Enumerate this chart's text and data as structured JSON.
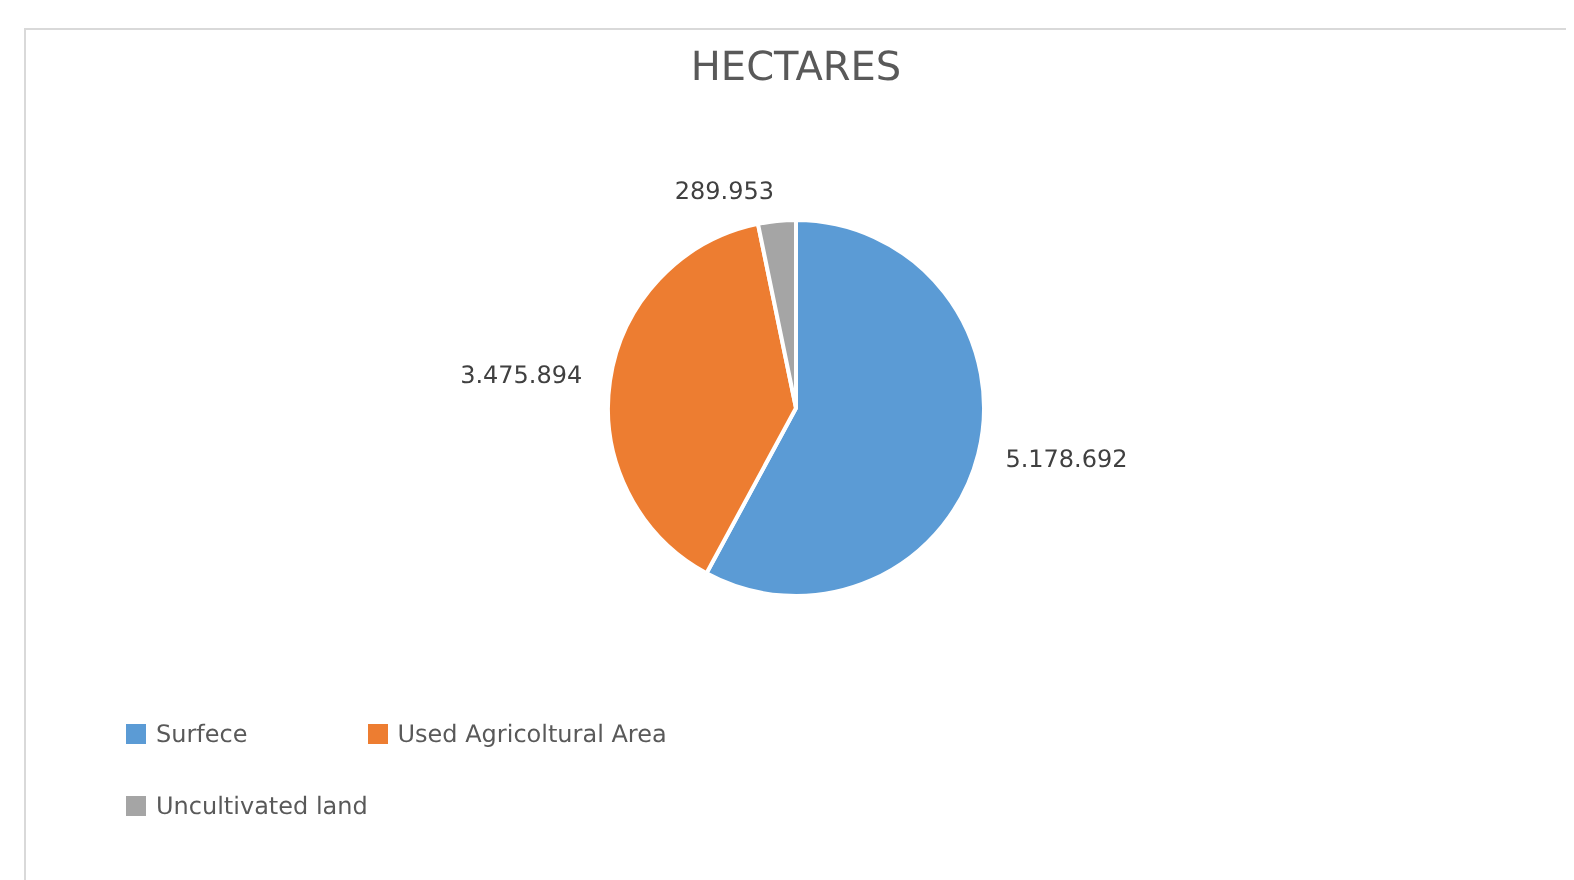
{
  "chart_data": {
    "type": "pie",
    "title": "HECTARES",
    "categories": [
      "Surfece",
      "Used Agricoltural Area",
      "Uncultivated  land"
    ],
    "values": [
      5178692,
      3475894,
      289953
    ],
    "colors": [
      "#5b9bd5",
      "#ed7d31",
      "#a5a5a5"
    ],
    "value_labels": [
      "5.178.692",
      "3.475.894",
      "289.953"
    ],
    "legend": "bottom"
  }
}
